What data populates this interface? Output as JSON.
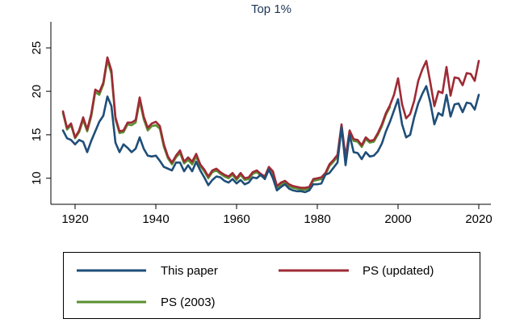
{
  "chart_data": {
    "type": "line",
    "title": "Top 1%",
    "xlabel": "",
    "ylabel": "",
    "xlim": [
      1914,
      2023
    ],
    "ylim": [
      7,
      28
    ],
    "xticks": [
      1920,
      1940,
      1960,
      1980,
      2000,
      2020
    ],
    "yticks": [
      10,
      15,
      20,
      25
    ],
    "grid": false,
    "legend_position": "bottom",
    "series": [
      {
        "name": "This paper",
        "color": "#1f4e79",
        "x": [
          1917,
          1918,
          1919,
          1920,
          1921,
          1922,
          1923,
          1924,
          1925,
          1926,
          1927,
          1928,
          1929,
          1930,
          1931,
          1932,
          1933,
          1934,
          1935,
          1936,
          1937,
          1938,
          1939,
          1940,
          1941,
          1942,
          1943,
          1944,
          1945,
          1946,
          1947,
          1948,
          1949,
          1950,
          1951,
          1952,
          1953,
          1954,
          1955,
          1956,
          1957,
          1958,
          1959,
          1960,
          1961,
          1962,
          1963,
          1964,
          1965,
          1966,
          1967,
          1968,
          1969,
          1970,
          1971,
          1972,
          1973,
          1974,
          1975,
          1976,
          1977,
          1978,
          1979,
          1980,
          1981,
          1982,
          1983,
          1984,
          1985,
          1986,
          1987,
          1988,
          1989,
          1990,
          1991,
          1992,
          1993,
          1994,
          1995,
          1996,
          1997,
          1998,
          1999,
          2000,
          2001,
          2002,
          2003,
          2004,
          2005,
          2006,
          2007,
          2008,
          2009,
          2010,
          2011,
          2012,
          2013,
          2014,
          2015,
          2016,
          2017,
          2018,
          2019,
          2020
        ],
        "values": [
          15.5,
          14.6,
          14.4,
          13.9,
          14.4,
          14.2,
          13.0,
          14.3,
          15.4,
          16.5,
          17.2,
          19.4,
          18.3,
          14.1,
          13.0,
          13.9,
          13.5,
          13.0,
          13.4,
          14.7,
          13.4,
          12.6,
          12.5,
          12.6,
          12.0,
          11.3,
          11.1,
          10.9,
          11.8,
          11.8,
          10.8,
          11.5,
          10.8,
          11.9,
          10.9,
          10.1,
          9.2,
          9.8,
          10.2,
          10.1,
          9.7,
          9.5,
          9.9,
          9.4,
          9.8,
          9.3,
          9.5,
          10.1,
          10.0,
          10.4,
          9.9,
          11.0,
          10.0,
          8.6,
          9.0,
          9.3,
          8.8,
          8.6,
          8.5,
          8.5,
          8.4,
          8.6,
          9.3,
          9.3,
          9.4,
          10.4,
          10.6,
          11.2,
          11.8,
          15.9,
          11.5,
          15.0,
          13.0,
          12.9,
          12.2,
          13.0,
          12.5,
          12.6,
          13.1,
          14.0,
          15.4,
          16.5,
          17.8,
          19.1,
          16.2,
          14.7,
          15.0,
          17.0,
          18.6,
          19.7,
          20.6,
          18.7,
          16.2,
          17.5,
          17.2,
          19.6,
          17.1,
          18.5,
          18.6,
          17.6,
          18.7,
          18.6,
          17.9,
          19.6
        ]
      },
      {
        "name": "PS (updated)",
        "color": "#9e2a35",
        "x": [
          1917,
          1918,
          1919,
          1920,
          1921,
          1922,
          1923,
          1924,
          1925,
          1926,
          1927,
          1928,
          1929,
          1930,
          1931,
          1932,
          1933,
          1934,
          1935,
          1936,
          1937,
          1938,
          1939,
          1940,
          1941,
          1942,
          1943,
          1944,
          1945,
          1946,
          1947,
          1948,
          1949,
          1950,
          1951,
          1952,
          1953,
          1954,
          1955,
          1956,
          1957,
          1958,
          1959,
          1960,
          1961,
          1962,
          1963,
          1964,
          1965,
          1966,
          1967,
          1968,
          1969,
          1970,
          1971,
          1972,
          1973,
          1974,
          1975,
          1976,
          1977,
          1978,
          1979,
          1980,
          1981,
          1982,
          1983,
          1984,
          1985,
          1986,
          1987,
          1988,
          1989,
          1990,
          1991,
          1992,
          1993,
          1994,
          1995,
          1996,
          1997,
          1998,
          1999,
          2000,
          2001,
          2002,
          2003,
          2004,
          2005,
          2006,
          2007,
          2008,
          2009,
          2010,
          2011,
          2012,
          2013,
          2014,
          2015,
          2016,
          2017,
          2018,
          2019,
          2020
        ],
        "values": [
          17.7,
          15.8,
          16.3,
          14.7,
          15.5,
          17.0,
          15.6,
          17.4,
          20.2,
          19.9,
          21.0,
          23.9,
          22.4,
          17.0,
          15.4,
          15.5,
          16.4,
          16.4,
          16.7,
          19.3,
          17.1,
          15.8,
          16.3,
          16.5,
          16.0,
          13.9,
          12.5,
          11.8,
          12.6,
          13.2,
          11.9,
          12.4,
          11.9,
          12.8,
          11.6,
          11.0,
          10.2,
          10.9,
          11.1,
          10.7,
          10.4,
          10.2,
          10.6,
          10.0,
          10.6,
          10.0,
          10.1,
          10.7,
          10.9,
          10.5,
          10.2,
          11.3,
          10.8,
          9.1,
          9.5,
          9.7,
          9.3,
          9.1,
          9.0,
          8.9,
          8.9,
          9.0,
          9.9,
          10.0,
          10.1,
          10.6,
          11.6,
          12.1,
          12.7,
          16.2,
          12.4,
          15.5,
          14.5,
          14.4,
          13.8,
          14.7,
          14.3,
          14.4,
          15.2,
          16.2,
          17.5,
          18.4,
          19.6,
          21.5,
          18.5,
          16.9,
          17.4,
          18.9,
          21.2,
          22.5,
          23.5,
          21.0,
          18.3,
          20.0,
          19.8,
          22.8,
          19.5,
          21.6,
          21.5,
          20.7,
          22.1,
          22.0,
          21.2,
          23.5
        ]
      },
      {
        "name": "PS (2003)",
        "color": "#5a8f32",
        "x": [
          1917,
          1918,
          1919,
          1920,
          1921,
          1922,
          1923,
          1924,
          1925,
          1926,
          1927,
          1928,
          1929,
          1930,
          1931,
          1932,
          1933,
          1934,
          1935,
          1936,
          1937,
          1938,
          1939,
          1940,
          1941,
          1942,
          1943,
          1944,
          1945,
          1946,
          1947,
          1948,
          1949,
          1950,
          1951,
          1952,
          1953,
          1954,
          1955,
          1956,
          1957,
          1958,
          1959,
          1960,
          1961,
          1962,
          1963,
          1964,
          1965,
          1966,
          1967,
          1968,
          1969,
          1970,
          1971,
          1972,
          1973,
          1974,
          1975,
          1976,
          1977,
          1978,
          1979,
          1980,
          1981,
          1982,
          1983,
          1984,
          1985,
          1986,
          1987,
          1988,
          1989,
          1990,
          1991,
          1992,
          1993,
          1994,
          1995,
          1996,
          1997,
          1998
        ],
        "values": [
          17.5,
          15.6,
          16.1,
          14.6,
          15.3,
          16.7,
          15.4,
          17.1,
          19.9,
          19.6,
          20.8,
          23.6,
          22.0,
          16.8,
          15.2,
          15.3,
          16.2,
          16.1,
          16.4,
          18.9,
          16.8,
          15.5,
          16.0,
          16.1,
          15.7,
          13.6,
          12.3,
          11.6,
          12.4,
          12.9,
          11.7,
          12.1,
          11.6,
          12.5,
          11.4,
          10.8,
          10.0,
          10.7,
          10.9,
          10.5,
          10.2,
          10.0,
          10.4,
          9.8,
          10.4,
          9.8,
          9.9,
          10.5,
          10.7,
          10.3,
          10.0,
          11.1,
          10.6,
          8.9,
          9.3,
          9.5,
          9.1,
          8.9,
          8.8,
          8.7,
          8.7,
          8.8,
          9.7,
          9.8,
          9.9,
          10.4,
          11.4,
          11.9,
          12.5,
          16.0,
          12.2,
          15.3,
          14.3,
          14.2,
          13.6,
          14.5,
          14.1,
          14.2,
          15.0,
          16.0,
          17.3,
          18.2
        ]
      }
    ]
  }
}
